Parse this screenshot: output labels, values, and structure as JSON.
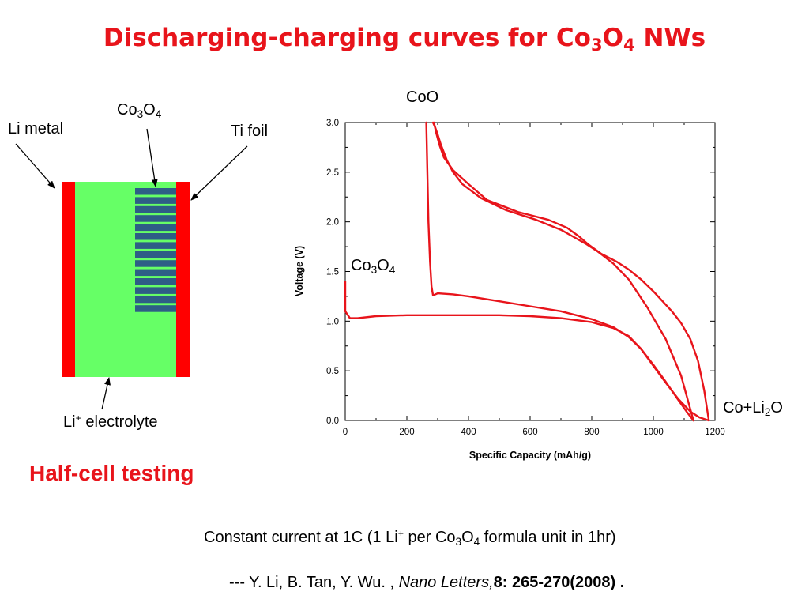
{
  "slide": {
    "title": {
      "prefix": "Discharging-charging curves for Co",
      "sub1": "3",
      "mid": "O",
      "sub2": "4",
      "suffix": " NWs"
    },
    "half_cell_label": "Half-cell testing",
    "footnote": {
      "t1": "Constant current at 1C (1 Li",
      "sup": "+",
      "t2": " per Co",
      "s1": "3",
      "t3": "O",
      "s2": "4",
      "t4": " formula unit in 1hr)"
    },
    "reference": {
      "authors": "--- Y. Li, B. Tan, Y. Wu. , ",
      "journal": "Nano Letters,",
      "citation": "8: 265-270(2008) ."
    }
  },
  "cell_diagram": {
    "li_metal_label": "Li metal",
    "co3o4_label": {
      "a": "Co",
      "s1": "3",
      "b": "O",
      "s2": "4"
    },
    "ti_foil_label": "Ti foil",
    "electrolyte_label": {
      "a": "Li",
      "sup": "+",
      "b": " electrolyte"
    },
    "nanowire_count": 14,
    "colors": {
      "electrode": "#ff0000",
      "electrolyte": "#66ff66",
      "nanowire": "#2e5e86",
      "arrow": "#000000"
    }
  },
  "chart_data": {
    "type": "line",
    "xlabel": "Specific Capacity (mAh/g)",
    "ylabel": "Voltage (V)",
    "xlim": [
      0,
      1200
    ],
    "ylim": [
      0,
      3.0
    ],
    "x_ticks": [
      0,
      200,
      400,
      600,
      800,
      1000,
      1200
    ],
    "x_tick_labels": [
      "0",
      "200",
      "400",
      "600",
      "800",
      "1000",
      "1200"
    ],
    "y_ticks": [
      0,
      0.5,
      1.0,
      1.5,
      2.0,
      2.5,
      3.0
    ],
    "y_tick_labels": [
      "0.0",
      "0.5",
      "1.0",
      "1.5",
      "2.0",
      "2.5",
      "3.0"
    ],
    "grid": false,
    "line_color": "#e8141b",
    "annotations": [
      {
        "text": "CoO",
        "x": 262,
        "y": 3.22
      },
      {
        "text": "Co3O4",
        "x": 20,
        "y": 1.5
      },
      {
        "text": "Co+Li2O",
        "x": 1220,
        "y": 0.1
      }
    ],
    "series": [
      {
        "x": [
          0,
          0,
          15,
          40,
          100,
          200,
          300,
          400,
          500,
          600,
          700,
          800,
          870,
          920,
          960,
          1000,
          1040,
          1080,
          1110,
          1130
        ],
        "y": [
          1.4,
          1.1,
          1.03,
          1.03,
          1.05,
          1.06,
          1.06,
          1.06,
          1.06,
          1.05,
          1.03,
          0.99,
          0.93,
          0.85,
          0.72,
          0.56,
          0.39,
          0.21,
          0.08,
          0.0
        ]
      },
      {
        "x": [
          1130,
          1090,
          1040,
          980,
          920,
          870,
          820,
          780,
          740,
          700,
          620,
          520,
          440,
          380,
          350,
          330,
          310,
          300,
          292,
          285
        ],
        "y": [
          0.0,
          0.45,
          0.82,
          1.14,
          1.42,
          1.58,
          1.7,
          1.78,
          1.85,
          1.92,
          2.02,
          2.12,
          2.24,
          2.38,
          2.5,
          2.62,
          2.78,
          2.88,
          2.95,
          3.0
        ]
      },
      {
        "x": [
          263,
          265,
          268,
          270,
          275,
          280,
          285,
          300,
          350,
          400,
          500,
          600,
          700,
          800,
          870,
          920,
          960,
          1000,
          1040,
          1080,
          1120,
          1150,
          1180
        ],
        "y": [
          3.0,
          2.7,
          2.3,
          2.0,
          1.6,
          1.35,
          1.26,
          1.28,
          1.27,
          1.25,
          1.2,
          1.15,
          1.1,
          1.02,
          0.94,
          0.84,
          0.72,
          0.55,
          0.38,
          0.22,
          0.09,
          0.03,
          0.0
        ]
      },
      {
        "x": [
          1180,
          1165,
          1145,
          1120,
          1090,
          1060,
          1030,
          1000,
          960,
          920,
          880,
          830,
          790,
          760,
          720,
          660,
          560,
          460,
          400,
          350,
          320,
          305,
          295,
          288
        ],
        "y": [
          0.0,
          0.3,
          0.6,
          0.82,
          0.98,
          1.1,
          1.2,
          1.3,
          1.42,
          1.52,
          1.6,
          1.68,
          1.77,
          1.85,
          1.94,
          2.02,
          2.1,
          2.22,
          2.38,
          2.52,
          2.65,
          2.78,
          2.9,
          3.0
        ]
      }
    ]
  }
}
